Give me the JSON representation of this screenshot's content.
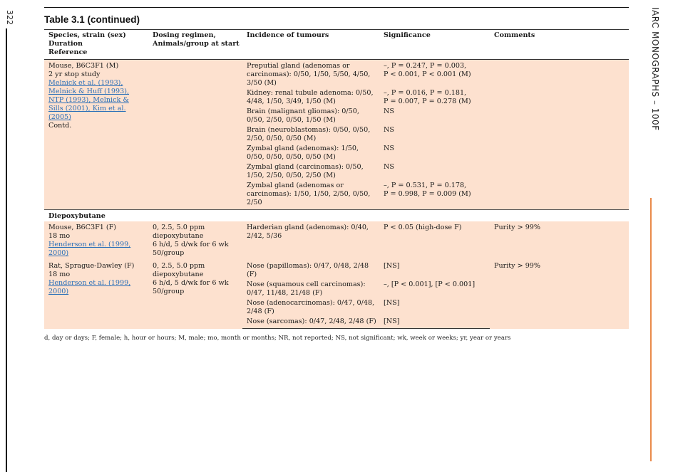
{
  "page": {
    "page_number": "322",
    "running_head": "IARC MONOGRAPHS – 100F"
  },
  "table": {
    "title": "Table 3.1 (continued)",
    "headers": {
      "col1": [
        "Species, strain (sex)",
        "Duration",
        "Reference"
      ],
      "col2": [
        "Dosing regimen,",
        "Animals/group at start"
      ],
      "col3": "Incidence of tumours",
      "col4": "Significance",
      "col5": "Comments"
    },
    "block1": {
      "study": [
        "Mouse, B6C3F1 (M)",
        "2 yr stop study"
      ],
      "refs": [
        "Melnick et al. (1993),",
        "Melnick & Huff (1993),",
        "NTP (1993), Melnick &",
        "Sills (2001), Kim et al.",
        "(2005)"
      ],
      "contd": "Contd.",
      "rows": [
        {
          "incidence": [
            "Preputial gland (adenomas or",
            "carcinomas): 0/50, 1/50, 5/50, 4/50,",
            "3/50 (M)"
          ],
          "significance": [
            "–, P = 0.247, P = 0.003,",
            "P < 0.001, P < 0.001 (M)"
          ]
        },
        {
          "incidence": [
            "Kidney: renal tubule adenoma: 0/50,",
            "4/48, 1/50, 3/49, 1/50 (M)"
          ],
          "significance": [
            "–, P = 0.016, P = 0.181,",
            "P = 0.007, P = 0.278 (M)"
          ]
        },
        {
          "incidence": [
            "Brain (malignant gliomas): 0/50,",
            "0/50, 2/50, 0/50, 1/50 (M)"
          ],
          "significance": [
            "NS"
          ]
        },
        {
          "incidence": [
            "Brain (neuroblastomas): 0/50, 0/50,",
            "2/50, 0/50, 0/50 (M)"
          ],
          "significance": [
            "NS"
          ]
        },
        {
          "incidence": [
            "Zymbal gland (adenomas): 1/50,",
            "0/50, 0/50, 0/50, 0/50 (M)"
          ],
          "significance": [
            "NS"
          ]
        },
        {
          "incidence": [
            "Zymbal gland (carcinomas): 0/50,",
            "1/50, 2/50, 0/50, 2/50 (M)"
          ],
          "significance": [
            "NS"
          ]
        },
        {
          "incidence": [
            "Zymbal gland (adenomas or",
            "carcinomas): 1/50, 1/50, 2/50, 0/50,",
            "2/50"
          ],
          "significance": [
            "–, P = 0.531, P = 0.178,",
            "P = 0.998, P = 0.009 (M)"
          ]
        }
      ]
    },
    "section_title": "Diepoxybutane",
    "block2": {
      "study": [
        "Mouse, B6C3F1 (F)",
        "18 mo"
      ],
      "refs": [
        "Henderson et al. (1999,",
        "2000)"
      ],
      "dosing": [
        "0, 2.5, 5.0 ppm",
        "diepoxybutane",
        "6 h/d, 5 d/wk for 6 wk",
        "50/group"
      ],
      "incidence": [
        "Harderian gland (adenomas): 0/40,",
        "2/42, 5/36"
      ],
      "significance": [
        "P < 0.05 (high-dose F)"
      ],
      "comments": "Purity > 99%"
    },
    "block3": {
      "study": [
        "Rat, Sprague-Dawley (F)",
        "18 mo"
      ],
      "refs": [
        "Henderson et al. (1999,",
        "2000)"
      ],
      "dosing": [
        "0, 2.5, 5.0 ppm",
        "diepoxybutane",
        "6 h/d, 5 d/wk for 6 wk",
        "50/group"
      ],
      "comments": "Purity > 99%",
      "rows": [
        {
          "incidence": [
            "Nose (papillomas): 0/47, 0/48, 2/48",
            "(F)"
          ],
          "significance": [
            "[NS]"
          ]
        },
        {
          "incidence": [
            "Nose (squamous cell carcinomas):",
            "0/47, 11/48, 21/48 (F)"
          ],
          "significance": [
            "–, [P < 0.001], [P < 0.001]"
          ]
        },
        {
          "incidence": [
            "Nose (adenocarcinomas): 0/47, 0/48,",
            "2/48 (F)"
          ],
          "significance": [
            "[NS]"
          ]
        },
        {
          "incidence": [
            "Nose (sarcomas): 0/47, 2/48, 2/48 (F)"
          ],
          "significance": [
            "[NS]"
          ]
        }
      ]
    },
    "footnote": "d, day or days; F, female; h, hour or hours; M, male; mo, month or months; NR, not reported; NS, not significant; wk, week or weeks; yr, year or years"
  }
}
